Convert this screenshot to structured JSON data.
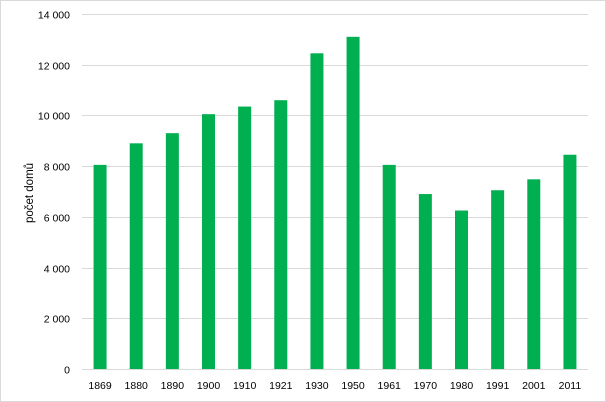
{
  "chart_data": {
    "type": "bar",
    "title": "",
    "xlabel": "",
    "ylabel": "počet domů",
    "ylim": [
      0,
      14000
    ],
    "yticks": [
      0,
      2000,
      4000,
      6000,
      8000,
      10000,
      12000,
      14000
    ],
    "ytick_labels": [
      "0",
      "2 000",
      "4 000",
      "6 000",
      "8 000",
      "10 000",
      "12 000",
      "14 000"
    ],
    "grid": true,
    "legend": "none",
    "bar_color": "#00b050",
    "categories": [
      "1869",
      "1880",
      "1890",
      "1900",
      "1910",
      "1921",
      "1930",
      "1950",
      "1961",
      "1970",
      "1980",
      "1991",
      "2001",
      "2011"
    ],
    "values": [
      8050,
      8900,
      9300,
      10050,
      10350,
      10600,
      12450,
      13100,
      8050,
      6900,
      6250,
      7050,
      7480,
      8450
    ]
  }
}
